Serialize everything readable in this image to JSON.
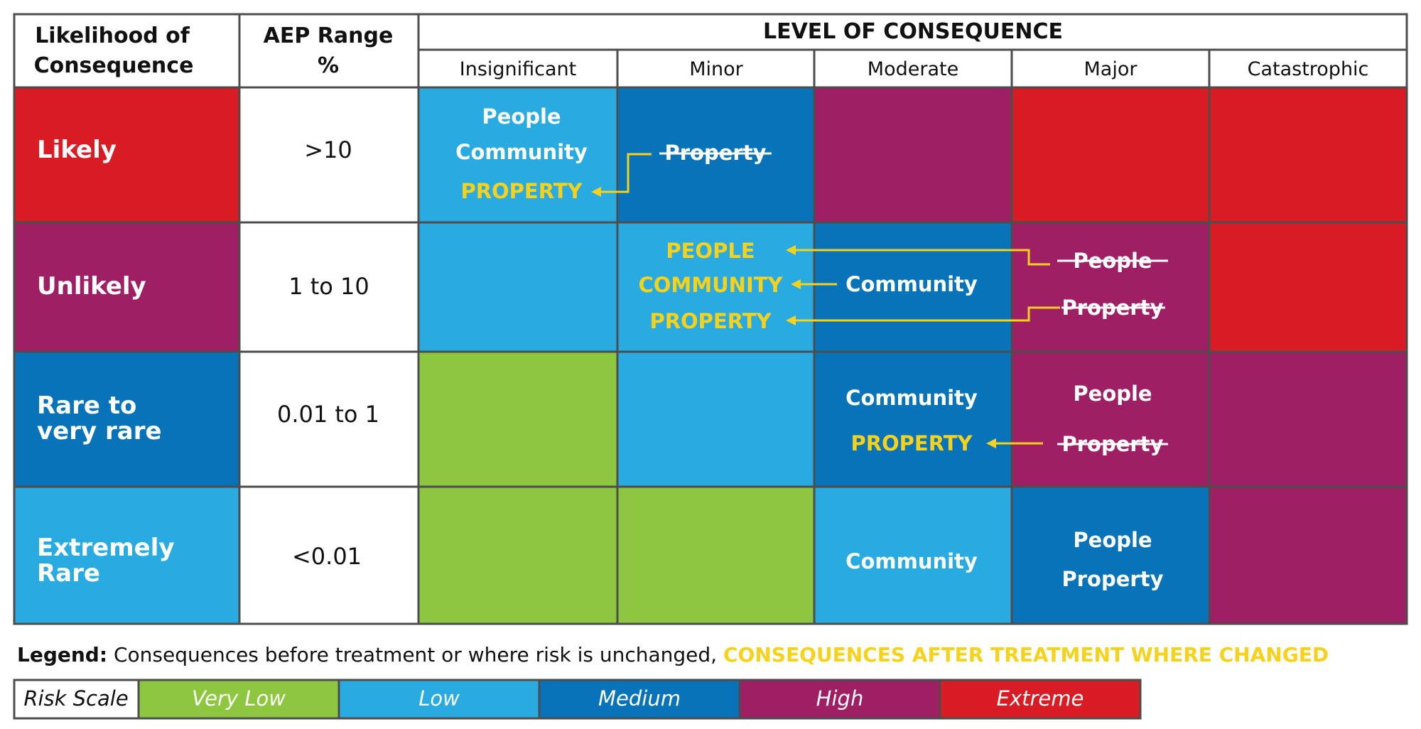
{
  "header": {
    "likelihood": [
      "Likelihood of",
      "Consequence"
    ],
    "aep": [
      "AEP Range",
      "%"
    ],
    "level": "LEVEL OF CONSEQUENCE",
    "consequences": [
      "Insignificant",
      "Minor",
      "Moderate",
      "Major",
      "Catastrophic"
    ]
  },
  "rows": [
    {
      "label": [
        "Likely"
      ],
      "aep": ">10"
    },
    {
      "label": [
        "Unlikely"
      ],
      "aep": "1 to 10"
    },
    {
      "label": [
        "Rare to",
        "very rare"
      ],
      "aep": "0.01 to 1"
    },
    {
      "label": [
        "Extremely",
        "Rare"
      ],
      "aep": "<0.01"
    }
  ],
  "matrix": [
    [
      "low",
      "medium",
      "high",
      "extreme",
      "extreme"
    ],
    [
      "low",
      "low",
      "medium",
      "high",
      "extreme"
    ],
    [
      "very_low",
      "low",
      "medium",
      "high",
      "high"
    ],
    [
      "very_low",
      "very_low",
      "low",
      "medium",
      "high"
    ]
  ],
  "cell_text": {
    "r0c1_people": "People",
    "r0c1_community": "Community",
    "r0c1_property": "PROPERTY",
    "r0c2_property": "Property",
    "r1c2_people": "PEOPLE",
    "r1c2_community": "COMMUNITY",
    "r1c2_property": "PROPERTY",
    "r1c3_community": "Community",
    "r1c4_people": "People",
    "r1c4_property": "Property",
    "r2c3_community": "Community",
    "r2c3_property": "PROPERTY",
    "r2c4_people": "People",
    "r2c4_property": "Property",
    "r3c3_community": "Community",
    "r3c4_people": "People",
    "r3c4_property": "Property"
  },
  "legend": {
    "label": "Legend:",
    "before": "Consequences before treatment or where risk is unchanged,",
    "after": "CONSEQUENCES AFTER TREATMENT WHERE CHANGED"
  },
  "risk_scale": {
    "title": "Risk Scale",
    "levels": [
      {
        "key": "very_low",
        "label": "Very Low"
      },
      {
        "key": "low",
        "label": "Low"
      },
      {
        "key": "medium",
        "label": "Medium"
      },
      {
        "key": "high",
        "label": "High"
      },
      {
        "key": "extreme",
        "label": "Extreme"
      }
    ]
  },
  "colors": {
    "very_low": "#8dc63f",
    "low": "#29abe2",
    "medium": "#0873b9",
    "high": "#9e1f63",
    "extreme": "#d91c24",
    "changed_text": "#f6d21d",
    "grid": "#4d4d4d"
  }
}
